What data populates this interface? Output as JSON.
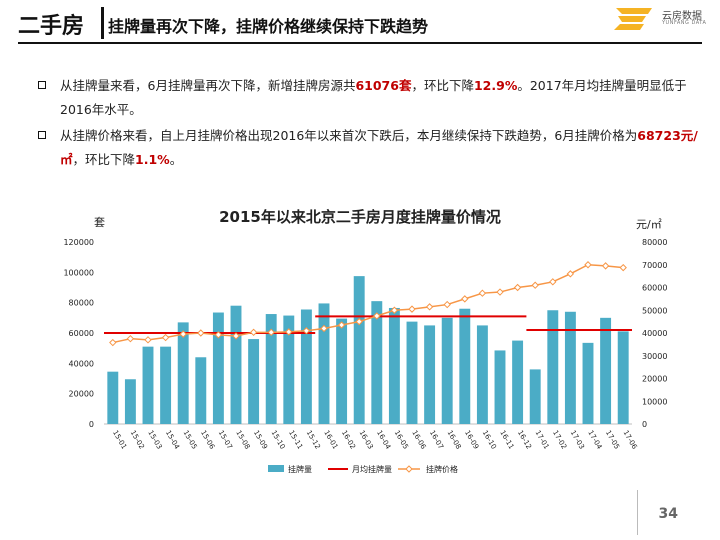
{
  "header": {
    "title": "二手房",
    "subtitle": "挂牌量再次下降，挂牌价格继续保持下跌趋势",
    "logo_name": "云房数据",
    "logo_en": "YUNFANG DATA"
  },
  "bullets": [
    {
      "p1": "从挂牌量来看，6月挂牌量再次下降，新增挂牌房源共",
      "h1": "61076套",
      "p2": "，环比下降",
      "h2": "12.9%",
      "p3": "。2017年月均挂牌量明显低于2016年水平。"
    },
    {
      "p1": "从挂牌价格来看，自上月挂牌价格出现2016年以来首次下跌后，本月继续保持下跌趋势，6月挂牌价格为",
      "h1": "68723元/㎡",
      "p2": "，环比下降",
      "h2": "1.1%",
      "p3": "。"
    }
  ],
  "page_number": "34",
  "colors": {
    "bar": "#4bacc6",
    "avg_line": "#e00000",
    "price_line": "#f79646"
  },
  "chart_data": {
    "type": "bar",
    "title": "2015年以来北京二手房月度挂牌量价情况",
    "ylabel_left": "套",
    "ylabel_right": "元/㎡",
    "ylim_left": [
      0,
      120000
    ],
    "ylim_right": [
      0,
      80000
    ],
    "yticks_left": [
      "0",
      "20000",
      "40000",
      "60000",
      "80000",
      "100000",
      "120000"
    ],
    "yticks_right": [
      "0",
      "10000",
      "20000",
      "30000",
      "40000",
      "50000",
      "60000",
      "70000",
      "80000"
    ],
    "categories": [
      "15-01",
      "15-02",
      "15-03",
      "15-04",
      "15-05",
      "15-06",
      "15-07",
      "15-08",
      "15-09",
      "15-10",
      "15-11",
      "15-12",
      "16-01",
      "16-02",
      "16-03",
      "16-04",
      "16-05",
      "16-06",
      "16-07",
      "16-08",
      "16-09",
      "16-10",
      "16-11",
      "16-12",
      "17-01",
      "17-02",
      "17-03",
      "17-04",
      "17-05",
      "17-06"
    ],
    "legend": [
      "挂牌量",
      "月均挂牌量",
      "挂牌价格"
    ],
    "series": [
      {
        "name": "挂牌量",
        "axis": "left",
        "kind": "bar",
        "values": [
          34500,
          29500,
          51000,
          51000,
          67000,
          44000,
          73500,
          78000,
          56000,
          72500,
          71500,
          75500,
          79500,
          69500,
          97500,
          81000,
          76500,
          67500,
          65000,
          70000,
          76000,
          65000,
          48500,
          55000,
          36000,
          75000,
          74000,
          53500,
          70000,
          61076
        ]
      },
      {
        "name": "挂牌价格",
        "axis": "right",
        "kind": "line",
        "values": [
          35800,
          37500,
          37000,
          38000,
          39500,
          40000,
          39200,
          38700,
          40300,
          40300,
          40500,
          41000,
          42000,
          43500,
          45000,
          47500,
          50000,
          50500,
          51500,
          52500,
          55000,
          57500,
          58000,
          60000,
          61000,
          62500,
          66000,
          70000,
          69500,
          68723
        ]
      }
    ],
    "averages": [
      {
        "name": "月均挂牌量",
        "from": "15-01",
        "to": "15-12",
        "value": 60000
      },
      {
        "name": "月均挂牌量",
        "from": "16-01",
        "to": "16-12",
        "value": 71000
      },
      {
        "name": "月均挂牌量",
        "from": "17-01",
        "to": "17-06",
        "value": 62000
      }
    ]
  }
}
